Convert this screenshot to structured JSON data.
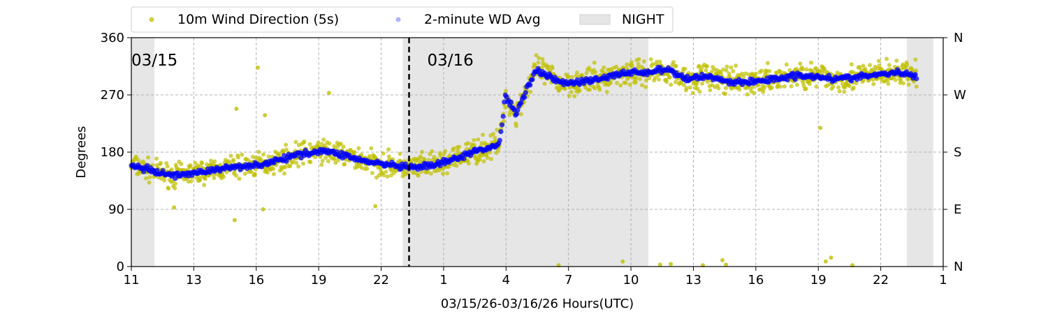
{
  "chart_data": {
    "type": "scatter",
    "title": "",
    "xlabel": "03/15/26-03/16/26  Hours(UTC)",
    "ylabel": "Degrees",
    "ylim": [
      0,
      360
    ],
    "xlim": [
      "2026-03-15 11:00",
      "2026-03-17 01:00"
    ],
    "x_tick_labels": [
      "11",
      "13",
      "16",
      "19",
      "22",
      "1",
      "4",
      "7",
      "10",
      "13",
      "16",
      "19",
      "22",
      "1"
    ],
    "y_ticks": [
      0,
      90,
      180,
      270,
      360
    ],
    "y_tick_labels": [
      "0",
      "90",
      "180",
      "270",
      "360"
    ],
    "right_axis_labels": [
      "N",
      "E",
      "S",
      "W",
      "N"
    ],
    "grid": true,
    "legend_position": "top",
    "legend": [
      {
        "label": "10m Wind Direction (5s)",
        "color": "#bfbf00",
        "marker": "dot"
      },
      {
        "label": "2-minute WD Avg",
        "color": "#0000ff",
        "marker": "dot"
      },
      {
        "label": "NIGHT",
        "color": "#e6e6e6",
        "marker": "patch"
      }
    ],
    "date_annotations": [
      {
        "text": "03/15",
        "x": "2026-03-15 11:00"
      },
      {
        "text": "03/16",
        "x": "2026-03-16 00:00"
      }
    ],
    "day_boundary": "2026-03-16 00:00",
    "night_periods": [
      [
        "2026-03-15 11:00",
        "2026-03-15 12:05"
      ],
      [
        "2026-03-15 23:42",
        "2026-03-16 11:12"
      ],
      [
        "2026-03-16 23:18",
        "2026-03-17 00:32"
      ]
    ],
    "series": [
      {
        "name": "2-minute WD Avg",
        "color": "#0000ff",
        "x": [
          "2026-03-15 11:00",
          "2026-03-15 12:00",
          "2026-03-15 13:00",
          "2026-03-15 14:00",
          "2026-03-15 15:00",
          "2026-03-15 16:00",
          "2026-03-15 17:00",
          "2026-03-15 18:00",
          "2026-03-15 19:00",
          "2026-03-15 20:00",
          "2026-03-15 21:00",
          "2026-03-15 22:00",
          "2026-03-15 23:00",
          "2026-03-16 00:00",
          "2026-03-16 01:00",
          "2026-03-16 02:00",
          "2026-03-16 03:00",
          "2026-03-16 04:00",
          "2026-03-16 04:15",
          "2026-03-16 04:30",
          "2026-03-16 05:00",
          "2026-03-16 05:30",
          "2026-03-16 06:00",
          "2026-03-16 07:00",
          "2026-03-16 08:00",
          "2026-03-16 09:00",
          "2026-03-16 10:00",
          "2026-03-16 11:00",
          "2026-03-16 12:00",
          "2026-03-16 13:00",
          "2026-03-16 14:00",
          "2026-03-16 15:00",
          "2026-03-16 16:00",
          "2026-03-16 17:00",
          "2026-03-16 18:00",
          "2026-03-16 19:00",
          "2026-03-16 20:00",
          "2026-03-16 21:00",
          "2026-03-16 22:00",
          "2026-03-16 23:00",
          "2026-03-16 23:45"
        ],
        "y": [
          160,
          150,
          143,
          148,
          152,
          158,
          160,
          168,
          178,
          182,
          175,
          165,
          160,
          155,
          158,
          167,
          180,
          190,
          195,
          270,
          240,
          280,
          310,
          290,
          290,
          295,
          305,
          305,
          310,
          295,
          300,
          290,
          290,
          295,
          300,
          300,
          295,
          298,
          302,
          305,
          298
        ]
      },
      {
        "name": "10m Wind Direction (5s)",
        "color": "#bfbf00",
        "spread_deg": [
          [
            "2026-03-15 11:00",
            25
          ],
          [
            "2026-03-16 05:00",
            30
          ],
          [
            "2026-03-16 23:45",
            30
          ]
        ],
        "outliers": [
          {
            "x": "2026-03-15 16:55",
            "y": 313
          },
          {
            "x": "2026-03-15 20:15",
            "y": 273
          },
          {
            "x": "2026-03-15 15:55",
            "y": 248
          },
          {
            "x": "2026-03-15 17:15",
            "y": 238
          },
          {
            "x": "2026-03-15 15:50",
            "y": 73
          },
          {
            "x": "2026-03-15 13:00",
            "y": 93
          },
          {
            "x": "2026-03-15 22:25",
            "y": 95
          },
          {
            "x": "2026-03-15 17:10",
            "y": 90
          },
          {
            "x": "2026-03-16 07:00",
            "y": 2
          },
          {
            "x": "2026-03-16 10:00",
            "y": 8
          },
          {
            "x": "2026-03-16 11:45",
            "y": 3
          },
          {
            "x": "2026-03-16 12:15",
            "y": 4
          },
          {
            "x": "2026-03-16 13:45",
            "y": 2
          },
          {
            "x": "2026-03-16 14:40",
            "y": 10
          },
          {
            "x": "2026-03-16 14:50",
            "y": 3
          },
          {
            "x": "2026-03-16 19:30",
            "y": 8
          },
          {
            "x": "2026-03-16 19:45",
            "y": 14
          },
          {
            "x": "2026-03-16 20:45",
            "y": 2
          },
          {
            "x": "2026-03-16 19:15",
            "y": 218
          }
        ]
      }
    ]
  }
}
